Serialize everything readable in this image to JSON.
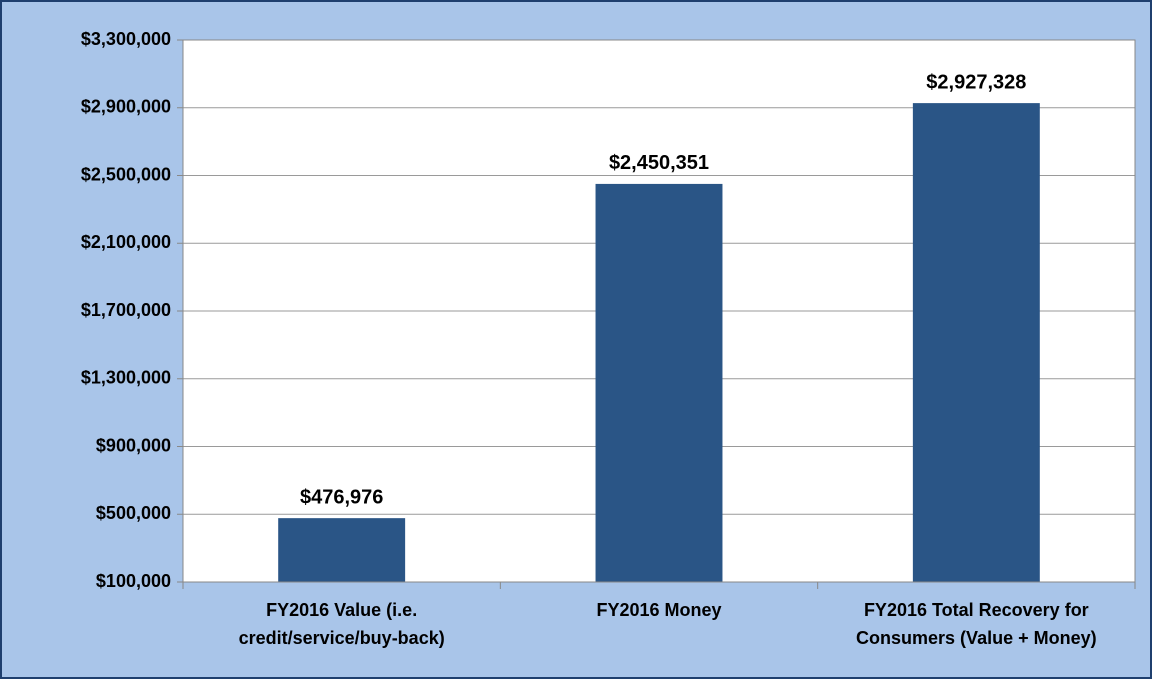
{
  "chart_data": {
    "type": "bar",
    "categories": [
      "FY2016 Value (i.e. credit/service/buy-back)",
      "FY2016 Money",
      "FY2016 Total Recovery for Consumers (Value + Money)"
    ],
    "values": [
      476976,
      2450351,
      2927328
    ],
    "value_labels": [
      "$476,976",
      "$2,450,351",
      "$2,927,328"
    ],
    "color": "#2a5586",
    "ylim": [
      100000,
      3300000
    ],
    "yticks": [
      {
        "value": 100000,
        "label": "$100,000"
      },
      {
        "value": 500000,
        "label": "$500,000"
      },
      {
        "value": 900000,
        "label": "$900,000"
      },
      {
        "value": 1300000,
        "label": "$1,300,000"
      },
      {
        "value": 1700000,
        "label": "$1,700,000"
      },
      {
        "value": 2100000,
        "label": "$2,100,000"
      },
      {
        "value": 2500000,
        "label": "$2,500,000"
      },
      {
        "value": 2900000,
        "label": "$2,900,000"
      },
      {
        "value": 3300000,
        "label": "$3,300,000"
      }
    ],
    "grid": true
  }
}
